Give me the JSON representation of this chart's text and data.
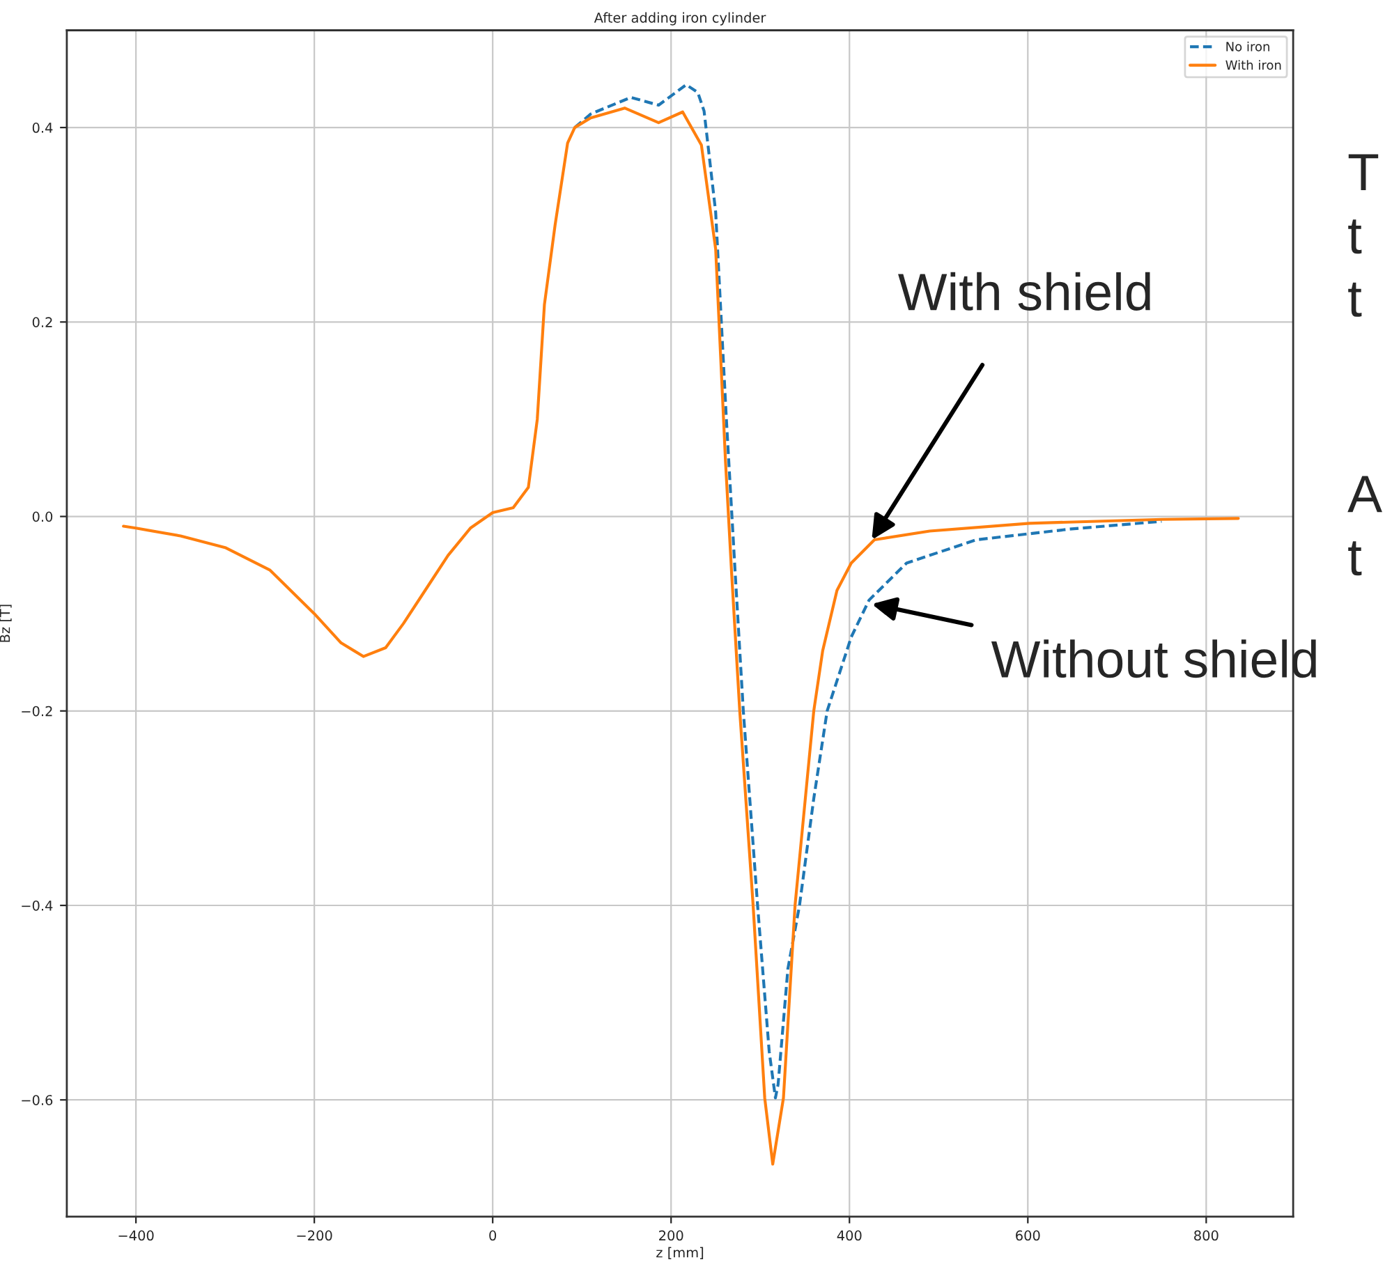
{
  "chart_data": {
    "type": "line",
    "title": "After adding iron cylinder",
    "xlabel": "z [mm]",
    "ylabel": "Bz [T]",
    "xlim": [
      -477.5,
      897.5
    ],
    "ylim": [
      -0.72,
      0.5
    ],
    "xticks": [
      {
        "value": -400,
        "label": "−400"
      },
      {
        "value": -200,
        "label": "−200"
      },
      0,
      200,
      400,
      600,
      800
    ],
    "yticks": [
      {
        "value": -0.6,
        "label": "−0.6"
      },
      {
        "value": -0.4,
        "label": "−0.4"
      },
      {
        "value": -0.2,
        "label": "−0.2"
      },
      {
        "value": 0.0,
        "label": "0.0"
      },
      {
        "value": 0.2,
        "label": "0.2"
      },
      {
        "value": 0.4,
        "label": "0.4"
      }
    ],
    "grid": true,
    "legend": "top right",
    "marker": "none",
    "series": [
      {
        "name": "No iron",
        "color": "#1f77b4",
        "line_style": "dashed",
        "x": [
          92,
          110,
          155,
          186,
          217,
          230,
          237,
          250,
          262,
          272,
          281,
          297,
          310,
          317,
          320,
          331,
          344,
          360,
          375,
          402,
          422,
          464,
          542,
          647,
          750
        ],
        "values": [
          0.4,
          0.414,
          0.431,
          0.423,
          0.444,
          0.436,
          0.417,
          0.313,
          0.1,
          -0.06,
          -0.2,
          -0.4,
          -0.55,
          -0.598,
          -0.584,
          -0.465,
          -0.4,
          -0.29,
          -0.2,
          -0.124,
          -0.086,
          -0.048,
          -0.024,
          -0.013,
          -0.005
        ]
      },
      {
        "name": "With iron",
        "color": "#ff7f0e",
        "line_style": "solid",
        "x": [
          -414,
          -400,
          -350,
          -300,
          -250,
          -200,
          -170,
          -145,
          -120,
          -100,
          -75,
          -50,
          -25,
          0,
          23,
          40,
          50,
          58,
          70,
          84,
          92,
          110,
          148,
          186,
          213,
          234,
          250,
          261,
          268,
          277,
          292,
          305,
          314,
          326,
          339,
          352,
          360,
          370,
          386,
          402,
          428,
          490,
          602,
          750,
          836
        ],
        "values": [
          -0.01,
          -0.012,
          -0.02,
          -0.032,
          -0.055,
          -0.1,
          -0.13,
          -0.144,
          -0.135,
          -0.11,
          -0.075,
          -0.04,
          -0.012,
          0.004,
          0.009,
          0.03,
          0.1,
          0.218,
          0.3,
          0.384,
          0.4,
          0.41,
          0.42,
          0.405,
          0.416,
          0.382,
          0.275,
          0.057,
          -0.06,
          -0.2,
          -0.4,
          -0.598,
          -0.666,
          -0.598,
          -0.4,
          -0.276,
          -0.2,
          -0.138,
          -0.076,
          -0.048,
          -0.024,
          -0.015,
          -0.007,
          -0.003,
          -0.002
        ]
      }
    ],
    "annotations": [
      {
        "text": "With shield",
        "x": 425,
        "y": -0.024
      },
      {
        "text": "Without shield",
        "x": 425,
        "y": -0.09
      },
      "T",
      "t",
      "t",
      "A",
      "t"
    ]
  }
}
